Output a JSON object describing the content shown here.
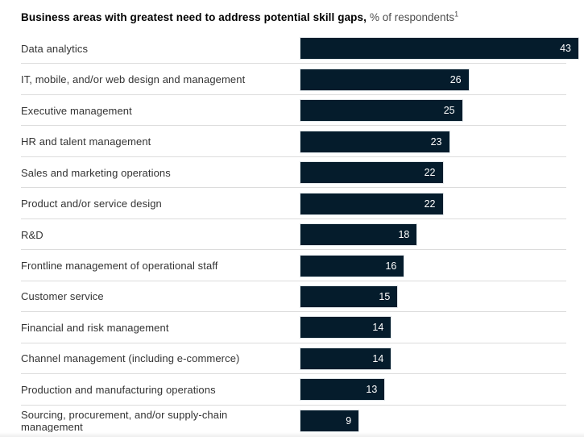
{
  "header": {
    "title_bold": "Business areas with greatest need to address potential skill gaps,",
    "subtitle": "% of respondents",
    "footnote_marker": "1"
  },
  "chart_data": {
    "type": "bar",
    "orientation": "horizontal",
    "title": "Business areas with greatest need to address potential skill gaps",
    "units": "% of respondents",
    "footnote_marker": "1",
    "categories": [
      "Data analytics",
      "IT, mobile, and/or web design and management",
      "Executive management",
      "HR and talent management",
      "Sales and marketing operations",
      "Product and/or service design",
      "R&D",
      "Frontline management of operational staff",
      "Customer service",
      "Financial and risk management",
      "Channel management (including e-commerce)",
      "Production and manufacturing operations",
      "Sourcing, procurement, and/or supply-chain management"
    ],
    "values": [
      43,
      26,
      25,
      23,
      22,
      22,
      18,
      16,
      15,
      14,
      14,
      13,
      9
    ],
    "xlim": [
      0,
      43
    ],
    "grid": false,
    "value_labels": "inside-end",
    "bar_color": "#051c2c",
    "value_label_color": "#ffffff",
    "divider_color": "#dcdcdc"
  }
}
